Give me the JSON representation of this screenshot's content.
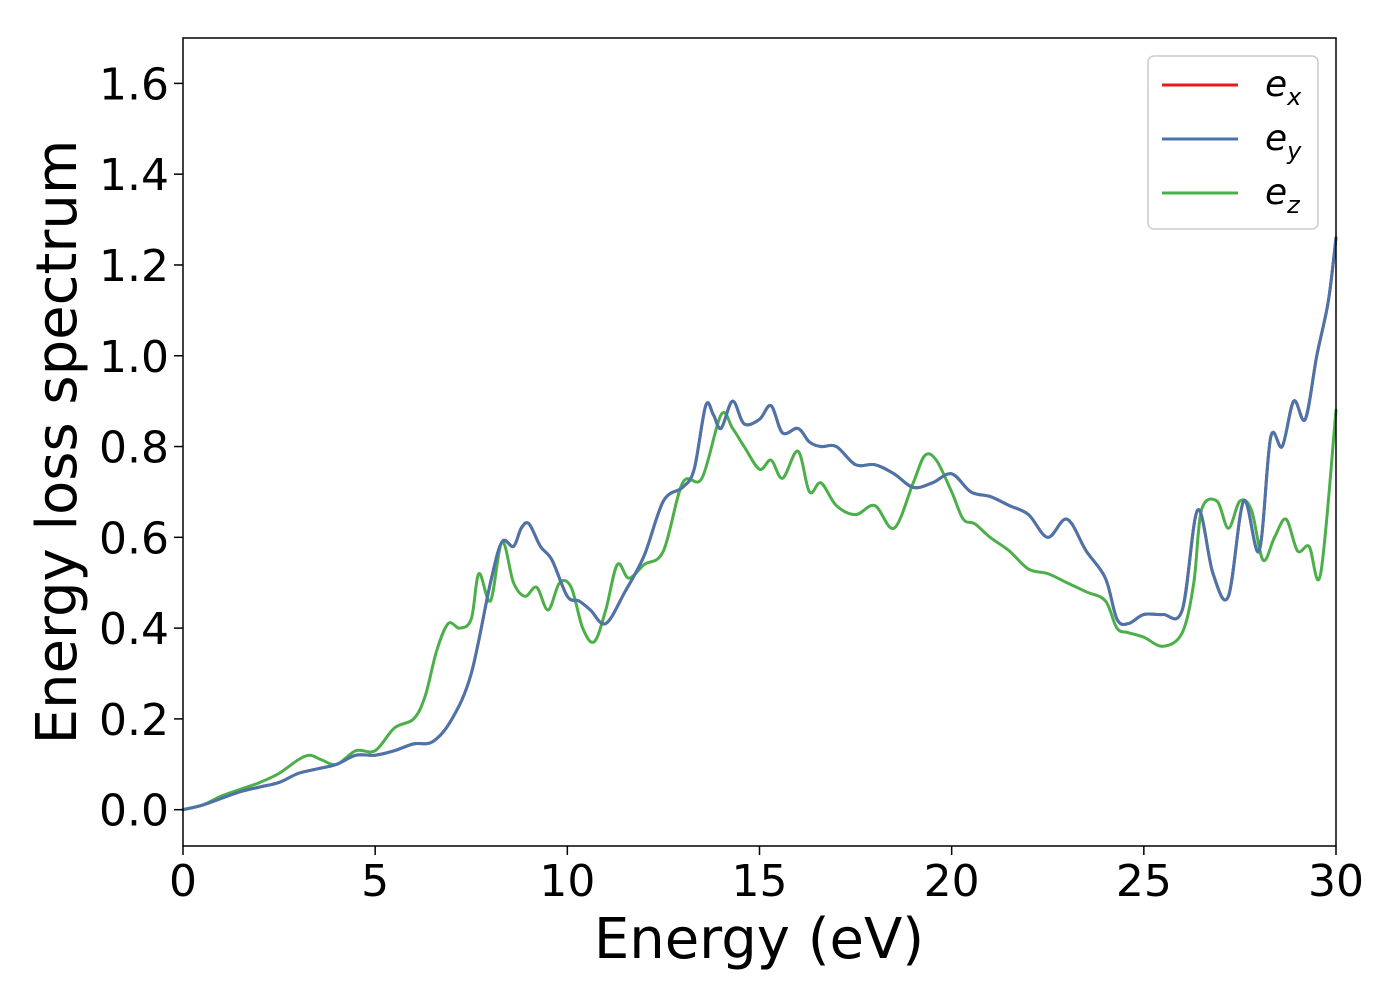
{
  "chart_data": {
    "type": "line",
    "xlabel": "Energy (eV)",
    "ylabel": "Energy loss spectrum",
    "xlim": [
      0,
      30
    ],
    "ylim": [
      -0.08,
      1.7
    ],
    "xticks": [
      0,
      5,
      10,
      15,
      20,
      25,
      30
    ],
    "xtick_labels": [
      "0",
      "5",
      "10",
      "15",
      "20",
      "25",
      "30"
    ],
    "yticks": [
      0.0,
      0.2,
      0.4,
      0.6,
      0.8,
      1.0,
      1.2,
      1.4,
      1.6
    ],
    "ytick_labels": [
      "0.0",
      "0.2",
      "0.4",
      "0.6",
      "0.8",
      "1.0",
      "1.2",
      "1.4",
      "1.6"
    ],
    "grid": false,
    "legend_position": "top-right",
    "series": [
      {
        "name": "e",
        "subscript": "x",
        "color": "#e41a1c",
        "x": [
          0,
          0.5,
          1,
          1.5,
          2,
          2.5,
          3,
          3.5,
          4,
          4.5,
          5,
          5.5,
          6,
          6.5,
          7,
          7.5,
          8,
          8.3,
          8.6,
          8.8,
          9,
          9.3,
          9.6,
          10,
          10.3,
          10.6,
          11,
          11.5,
          12,
          12.5,
          13,
          13.3,
          13.6,
          13.8,
          14,
          14.3,
          14.6,
          15,
          15.3,
          15.6,
          16,
          16.3,
          16.6,
          17,
          17.5,
          18,
          18.5,
          19,
          19.5,
          20,
          20.5,
          21,
          21.5,
          22,
          22.5,
          23,
          23.5,
          24,
          24.3,
          24.6,
          25,
          25.5,
          26,
          26.4,
          26.8,
          27.2,
          27.6,
          28,
          28.3,
          28.6,
          28.9,
          29.2,
          29.5,
          29.8,
          30
        ],
        "values": [
          0,
          0.01,
          0.025,
          0.04,
          0.05,
          0.06,
          0.08,
          0.09,
          0.1,
          0.12,
          0.12,
          0.13,
          0.145,
          0.15,
          0.2,
          0.3,
          0.5,
          0.59,
          0.58,
          0.62,
          0.63,
          0.58,
          0.55,
          0.47,
          0.46,
          0.44,
          0.41,
          0.48,
          0.56,
          0.68,
          0.71,
          0.75,
          0.89,
          0.87,
          0.84,
          0.9,
          0.85,
          0.86,
          0.89,
          0.83,
          0.84,
          0.81,
          0.8,
          0.8,
          0.76,
          0.76,
          0.74,
          0.71,
          0.72,
          0.74,
          0.7,
          0.69,
          0.67,
          0.65,
          0.6,
          0.64,
          0.57,
          0.51,
          0.42,
          0.41,
          0.43,
          0.43,
          0.44,
          0.66,
          0.52,
          0.47,
          0.68,
          0.57,
          0.82,
          0.8,
          0.9,
          0.86,
          1.0,
          1.12,
          1.26
        ]
      },
      {
        "name": "e",
        "subscript": "y",
        "color": "#4a75ab",
        "x": [
          0,
          0.5,
          1,
          1.5,
          2,
          2.5,
          3,
          3.5,
          4,
          4.5,
          5,
          5.5,
          6,
          6.5,
          7,
          7.5,
          8,
          8.3,
          8.6,
          8.8,
          9,
          9.3,
          9.6,
          10,
          10.3,
          10.6,
          11,
          11.5,
          12,
          12.5,
          13,
          13.3,
          13.6,
          13.8,
          14,
          14.3,
          14.6,
          15,
          15.3,
          15.6,
          16,
          16.3,
          16.6,
          17,
          17.5,
          18,
          18.5,
          19,
          19.5,
          20,
          20.5,
          21,
          21.5,
          22,
          22.5,
          23,
          23.5,
          24,
          24.3,
          24.6,
          25,
          25.5,
          26,
          26.4,
          26.8,
          27.2,
          27.6,
          28,
          28.3,
          28.6,
          28.9,
          29.2,
          29.5,
          29.8,
          30
        ],
        "values": [
          0,
          0.01,
          0.025,
          0.04,
          0.05,
          0.06,
          0.08,
          0.09,
          0.1,
          0.12,
          0.12,
          0.13,
          0.145,
          0.15,
          0.2,
          0.3,
          0.5,
          0.59,
          0.58,
          0.62,
          0.63,
          0.58,
          0.55,
          0.47,
          0.46,
          0.44,
          0.41,
          0.48,
          0.56,
          0.68,
          0.71,
          0.75,
          0.89,
          0.87,
          0.84,
          0.9,
          0.85,
          0.86,
          0.89,
          0.83,
          0.84,
          0.81,
          0.8,
          0.8,
          0.76,
          0.76,
          0.74,
          0.71,
          0.72,
          0.74,
          0.7,
          0.69,
          0.67,
          0.65,
          0.6,
          0.64,
          0.57,
          0.51,
          0.42,
          0.41,
          0.43,
          0.43,
          0.44,
          0.66,
          0.52,
          0.47,
          0.68,
          0.57,
          0.82,
          0.8,
          0.9,
          0.86,
          1.0,
          1.12,
          1.26
        ]
      },
      {
        "name": "e",
        "subscript": "z",
        "color": "#4daf4a",
        "x": [
          0,
          0.5,
          1,
          1.5,
          2,
          2.5,
          3,
          3.3,
          3.6,
          4,
          4.5,
          5,
          5.5,
          6,
          6.3,
          6.6,
          6.9,
          7.2,
          7.5,
          7.7,
          8,
          8.3,
          8.6,
          8.9,
          9.2,
          9.5,
          9.8,
          10.1,
          10.4,
          10.7,
          11,
          11.3,
          11.6,
          12,
          12.5,
          13,
          13.5,
          14,
          14.3,
          14.6,
          15,
          15.3,
          15.6,
          16,
          16.3,
          16.6,
          17,
          17.5,
          18,
          18.5,
          19,
          19.3,
          19.6,
          20,
          20.3,
          20.6,
          21,
          21.5,
          22,
          22.5,
          23,
          23.5,
          24,
          24.3,
          24.6,
          25,
          25.5,
          26,
          26.3,
          26.5,
          26.9,
          27.2,
          27.5,
          27.8,
          28.1,
          28.4,
          28.7,
          29,
          29.3,
          29.6,
          30
        ],
        "values": [
          0,
          0.01,
          0.03,
          0.045,
          0.06,
          0.08,
          0.11,
          0.12,
          0.11,
          0.1,
          0.13,
          0.13,
          0.18,
          0.2,
          0.25,
          0.35,
          0.41,
          0.4,
          0.42,
          0.52,
          0.46,
          0.59,
          0.5,
          0.47,
          0.49,
          0.44,
          0.5,
          0.49,
          0.4,
          0.37,
          0.44,
          0.54,
          0.51,
          0.54,
          0.57,
          0.72,
          0.73,
          0.87,
          0.84,
          0.8,
          0.75,
          0.77,
          0.73,
          0.79,
          0.7,
          0.72,
          0.67,
          0.65,
          0.67,
          0.62,
          0.72,
          0.78,
          0.77,
          0.7,
          0.64,
          0.63,
          0.6,
          0.57,
          0.53,
          0.52,
          0.5,
          0.48,
          0.46,
          0.4,
          0.39,
          0.38,
          0.36,
          0.39,
          0.5,
          0.66,
          0.68,
          0.62,
          0.68,
          0.66,
          0.55,
          0.6,
          0.64,
          0.57,
          0.58,
          0.52,
          0.88
        ]
      }
    ]
  }
}
